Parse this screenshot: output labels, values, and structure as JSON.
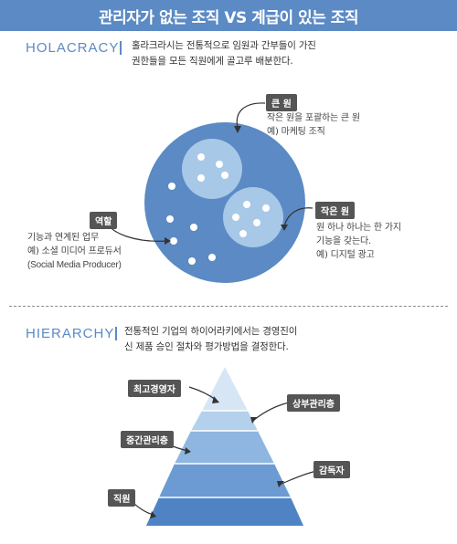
{
  "title": "관리자가 없는 조직 VS 계급이 있는 조직",
  "holacracy": {
    "heading": "HOLACRACY",
    "description_lines": [
      "홀라크라시는 전통적으로 임원과 간부들이 가진",
      "권한들을 모든 직원에게 골고루 배분한다."
    ],
    "big_circle": {
      "tag": "큰 원",
      "lines": [
        "작은 원을 포괄하는 큰 원",
        "예) 마케팅 조직"
      ]
    },
    "small_circle": {
      "tag": "작은 원",
      "lines": [
        "원 하나 하나는 한 가지",
        "기능을 갖는다.",
        "예) 디지털 광고"
      ]
    },
    "role": {
      "tag": "역할",
      "lines": [
        "기능과 연계된 업무",
        "예) 소셜 미디어 프로듀서",
        "(Social Media Producer)"
      ]
    }
  },
  "hierarchy": {
    "heading": "HIERARCHY",
    "description_lines": [
      "전통적인 기업의 하이어라키에서는 경영진이",
      "신 제품 승인 절차와 평가방법을 결정한다."
    ],
    "levels": [
      "최고경영자",
      "상부관리층",
      "중간관리층",
      "감독자",
      "직원"
    ]
  },
  "colors": {
    "accent": "#5b8ac4",
    "circle_fill": "#5b8ac4",
    "inner_circle": "#a8c8e8",
    "pyramid_tiers": [
      "#d6e6f5",
      "#b3d0ec",
      "#8fb6e0",
      "#6b9bd2",
      "#4f83c4"
    ]
  }
}
